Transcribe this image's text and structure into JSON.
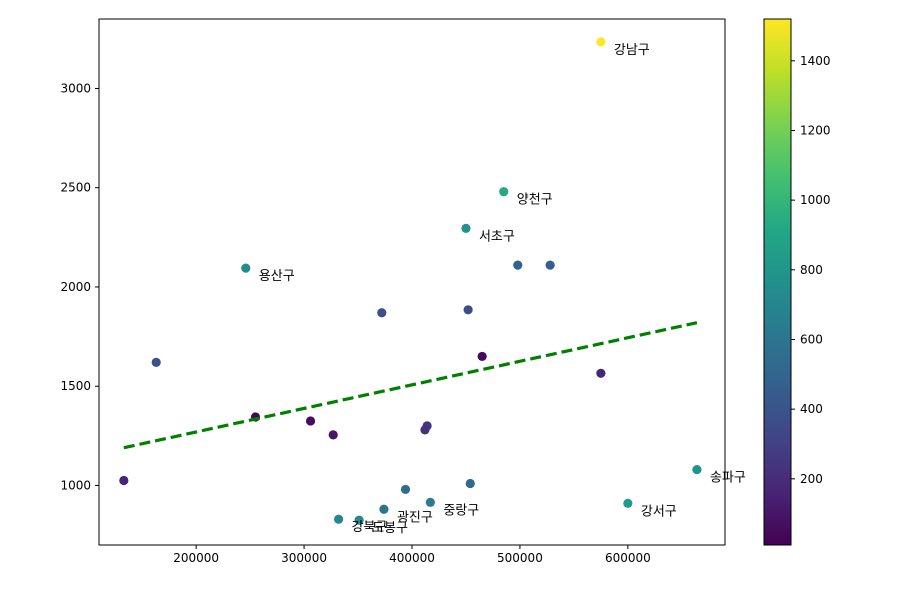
{
  "chart_data": {
    "type": "scatter",
    "title": "",
    "xlabel": "",
    "ylabel": "",
    "xlim": [
      110000,
      690000
    ],
    "ylim": [
      700,
      3350
    ],
    "xticks": [
      200000,
      300000,
      400000,
      500000,
      600000
    ],
    "yticks": [
      1000,
      1500,
      2000,
      2500,
      3000
    ],
    "grid": false,
    "colormap": "viridis",
    "colorbar": {
      "min": 10,
      "max": 1520,
      "ticks": [
        200,
        400,
        600,
        800,
        1000,
        1200,
        1400
      ]
    },
    "points": [
      {
        "x": 575000,
        "y": 3235,
        "c": 1520,
        "label": "강남구"
      },
      {
        "x": 485000,
        "y": 2480,
        "c": 920,
        "label": "양천구"
      },
      {
        "x": 450000,
        "y": 2295,
        "c": 770,
        "label": "서초구"
      },
      {
        "x": 246000,
        "y": 2095,
        "c": 740,
        "label": "용산구"
      },
      {
        "x": 498000,
        "y": 2110,
        "c": 480,
        "label": ""
      },
      {
        "x": 528000,
        "y": 2110,
        "c": 470,
        "label": ""
      },
      {
        "x": 372000,
        "y": 1870,
        "c": 380,
        "label": ""
      },
      {
        "x": 452000,
        "y": 1885,
        "c": 360,
        "label": ""
      },
      {
        "x": 163000,
        "y": 1620,
        "c": 390,
        "label": ""
      },
      {
        "x": 465000,
        "y": 1650,
        "c": 40,
        "label": ""
      },
      {
        "x": 575000,
        "y": 1565,
        "c": 170,
        "label": ""
      },
      {
        "x": 255000,
        "y": 1345,
        "c": 30,
        "label": ""
      },
      {
        "x": 306000,
        "y": 1325,
        "c": 60,
        "label": ""
      },
      {
        "x": 327000,
        "y": 1255,
        "c": 100,
        "label": ""
      },
      {
        "x": 414000,
        "y": 1300,
        "c": 240,
        "label": ""
      },
      {
        "x": 412000,
        "y": 1280,
        "c": 220,
        "label": ""
      },
      {
        "x": 133000,
        "y": 1025,
        "c": 170,
        "label": ""
      },
      {
        "x": 664000,
        "y": 1080,
        "c": 780,
        "label": "송파구"
      },
      {
        "x": 600000,
        "y": 910,
        "c": 830,
        "label": "강서구"
      },
      {
        "x": 454000,
        "y": 1010,
        "c": 530,
        "label": ""
      },
      {
        "x": 394000,
        "y": 980,
        "c": 540,
        "label": ""
      },
      {
        "x": 417000,
        "y": 915,
        "c": 640,
        "label": "중랑구"
      },
      {
        "x": 374000,
        "y": 880,
        "c": 600,
        "label": "광진구"
      },
      {
        "x": 332000,
        "y": 830,
        "c": 700,
        "label": "강북구"
      },
      {
        "x": 351000,
        "y": 825,
        "c": 720,
        "label": "도봉구"
      }
    ],
    "trendline": {
      "x": [
        133000,
        664000
      ],
      "y": [
        1190,
        1820
      ],
      "color": "#008000",
      "style": "dashed"
    }
  }
}
